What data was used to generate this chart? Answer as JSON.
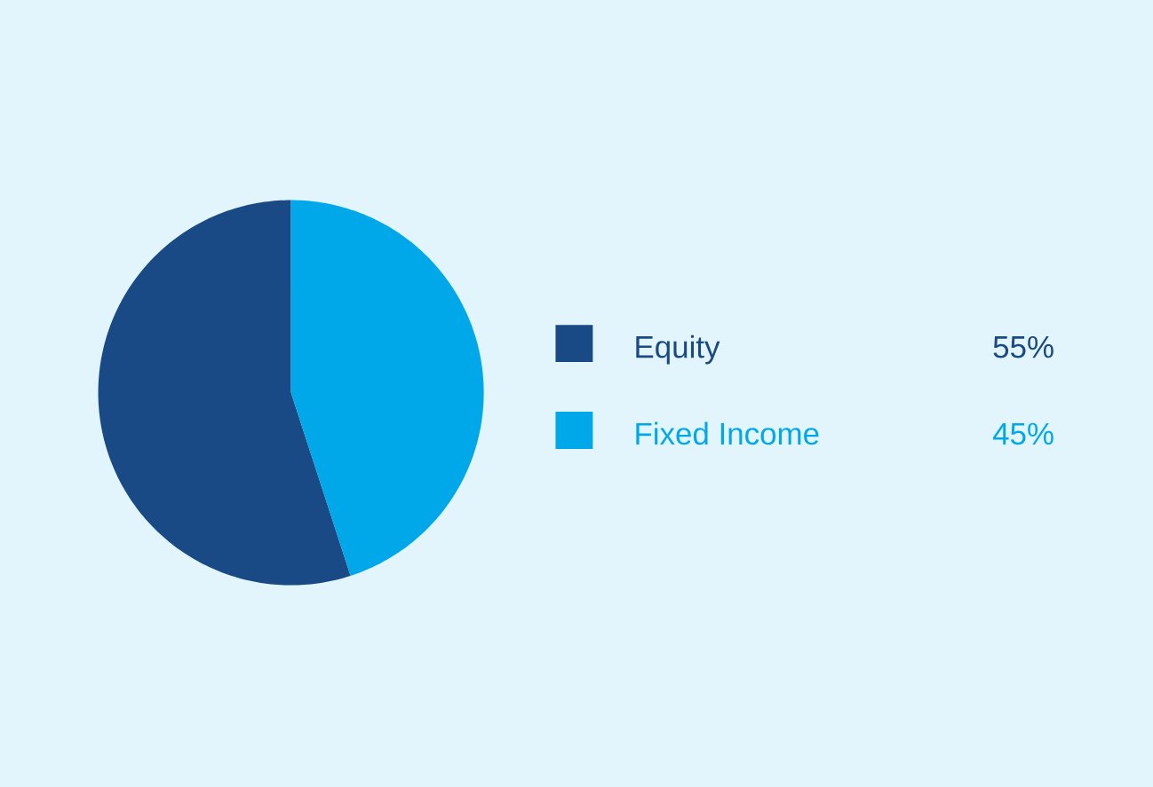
{
  "chart_data": {
    "type": "pie",
    "categories": [
      "Equity",
      "Fixed Income"
    ],
    "values": [
      55,
      45
    ],
    "colors": [
      "#1a4a85",
      "#00a8ea"
    ],
    "value_labels": [
      "55%",
      "45%"
    ],
    "legend": "right"
  }
}
